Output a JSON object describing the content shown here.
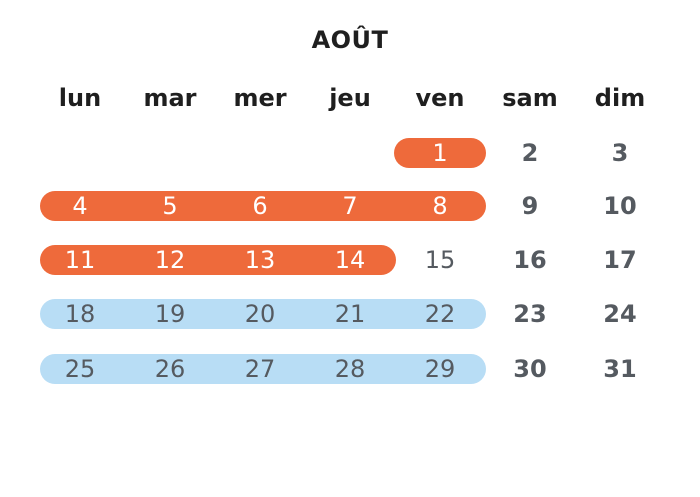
{
  "month": "AOÛT",
  "weekdays": [
    "lun",
    "mar",
    "mer",
    "jeu",
    "ven",
    "sam",
    "dim"
  ],
  "colors": {
    "orange": "#EE6A3B",
    "blue": "#B8DDF5",
    "text_dark": "#1f1f1f",
    "text_gray": "#555a60"
  },
  "days": [
    {
      "label": "1",
      "row": 0,
      "col": 4,
      "style": "orange"
    },
    {
      "label": "2",
      "row": 0,
      "col": 5,
      "style": "weekend"
    },
    {
      "label": "3",
      "row": 0,
      "col": 6,
      "style": "weekend"
    },
    {
      "label": "4",
      "row": 1,
      "col": 0,
      "style": "orange"
    },
    {
      "label": "5",
      "row": 1,
      "col": 1,
      "style": "orange"
    },
    {
      "label": "6",
      "row": 1,
      "col": 2,
      "style": "orange"
    },
    {
      "label": "7",
      "row": 1,
      "col": 3,
      "style": "orange"
    },
    {
      "label": "8",
      "row": 1,
      "col": 4,
      "style": "orange"
    },
    {
      "label": "9",
      "row": 1,
      "col": 5,
      "style": "weekend"
    },
    {
      "label": "10",
      "row": 1,
      "col": 6,
      "style": "weekend"
    },
    {
      "label": "11",
      "row": 2,
      "col": 0,
      "style": "orange"
    },
    {
      "label": "12",
      "row": 2,
      "col": 1,
      "style": "orange"
    },
    {
      "label": "13",
      "row": 2,
      "col": 2,
      "style": "orange"
    },
    {
      "label": "14",
      "row": 2,
      "col": 3,
      "style": "orange"
    },
    {
      "label": "15",
      "row": 2,
      "col": 4,
      "style": "plain"
    },
    {
      "label": "16",
      "row": 2,
      "col": 5,
      "style": "weekend"
    },
    {
      "label": "17",
      "row": 2,
      "col": 6,
      "style": "weekend"
    },
    {
      "label": "18",
      "row": 3,
      "col": 0,
      "style": "blue"
    },
    {
      "label": "19",
      "row": 3,
      "col": 1,
      "style": "blue"
    },
    {
      "label": "20",
      "row": 3,
      "col": 2,
      "style": "blue"
    },
    {
      "label": "21",
      "row": 3,
      "col": 3,
      "style": "blue"
    },
    {
      "label": "22",
      "row": 3,
      "col": 4,
      "style": "blue"
    },
    {
      "label": "23",
      "row": 3,
      "col": 5,
      "style": "weekend"
    },
    {
      "label": "24",
      "row": 3,
      "col": 6,
      "style": "weekend"
    },
    {
      "label": "25",
      "row": 4,
      "col": 0,
      "style": "blue"
    },
    {
      "label": "26",
      "row": 4,
      "col": 1,
      "style": "blue"
    },
    {
      "label": "27",
      "row": 4,
      "col": 2,
      "style": "blue"
    },
    {
      "label": "28",
      "row": 4,
      "col": 3,
      "style": "blue"
    },
    {
      "label": "29",
      "row": 4,
      "col": 4,
      "style": "blue"
    },
    {
      "label": "30",
      "row": 4,
      "col": 5,
      "style": "weekend"
    },
    {
      "label": "31",
      "row": 4,
      "col": 6,
      "style": "weekend"
    }
  ],
  "highlight_ranges": [
    {
      "row": 0,
      "from_col": 4,
      "to_col": 4,
      "style": "orange"
    },
    {
      "row": 1,
      "from_col": 0,
      "to_col": 4,
      "style": "orange"
    },
    {
      "row": 2,
      "from_col": 0,
      "to_col": 3,
      "style": "orange"
    },
    {
      "row": 3,
      "from_col": 0,
      "to_col": 4,
      "style": "blue"
    },
    {
      "row": 4,
      "from_col": 0,
      "to_col": 4,
      "style": "blue"
    }
  ]
}
